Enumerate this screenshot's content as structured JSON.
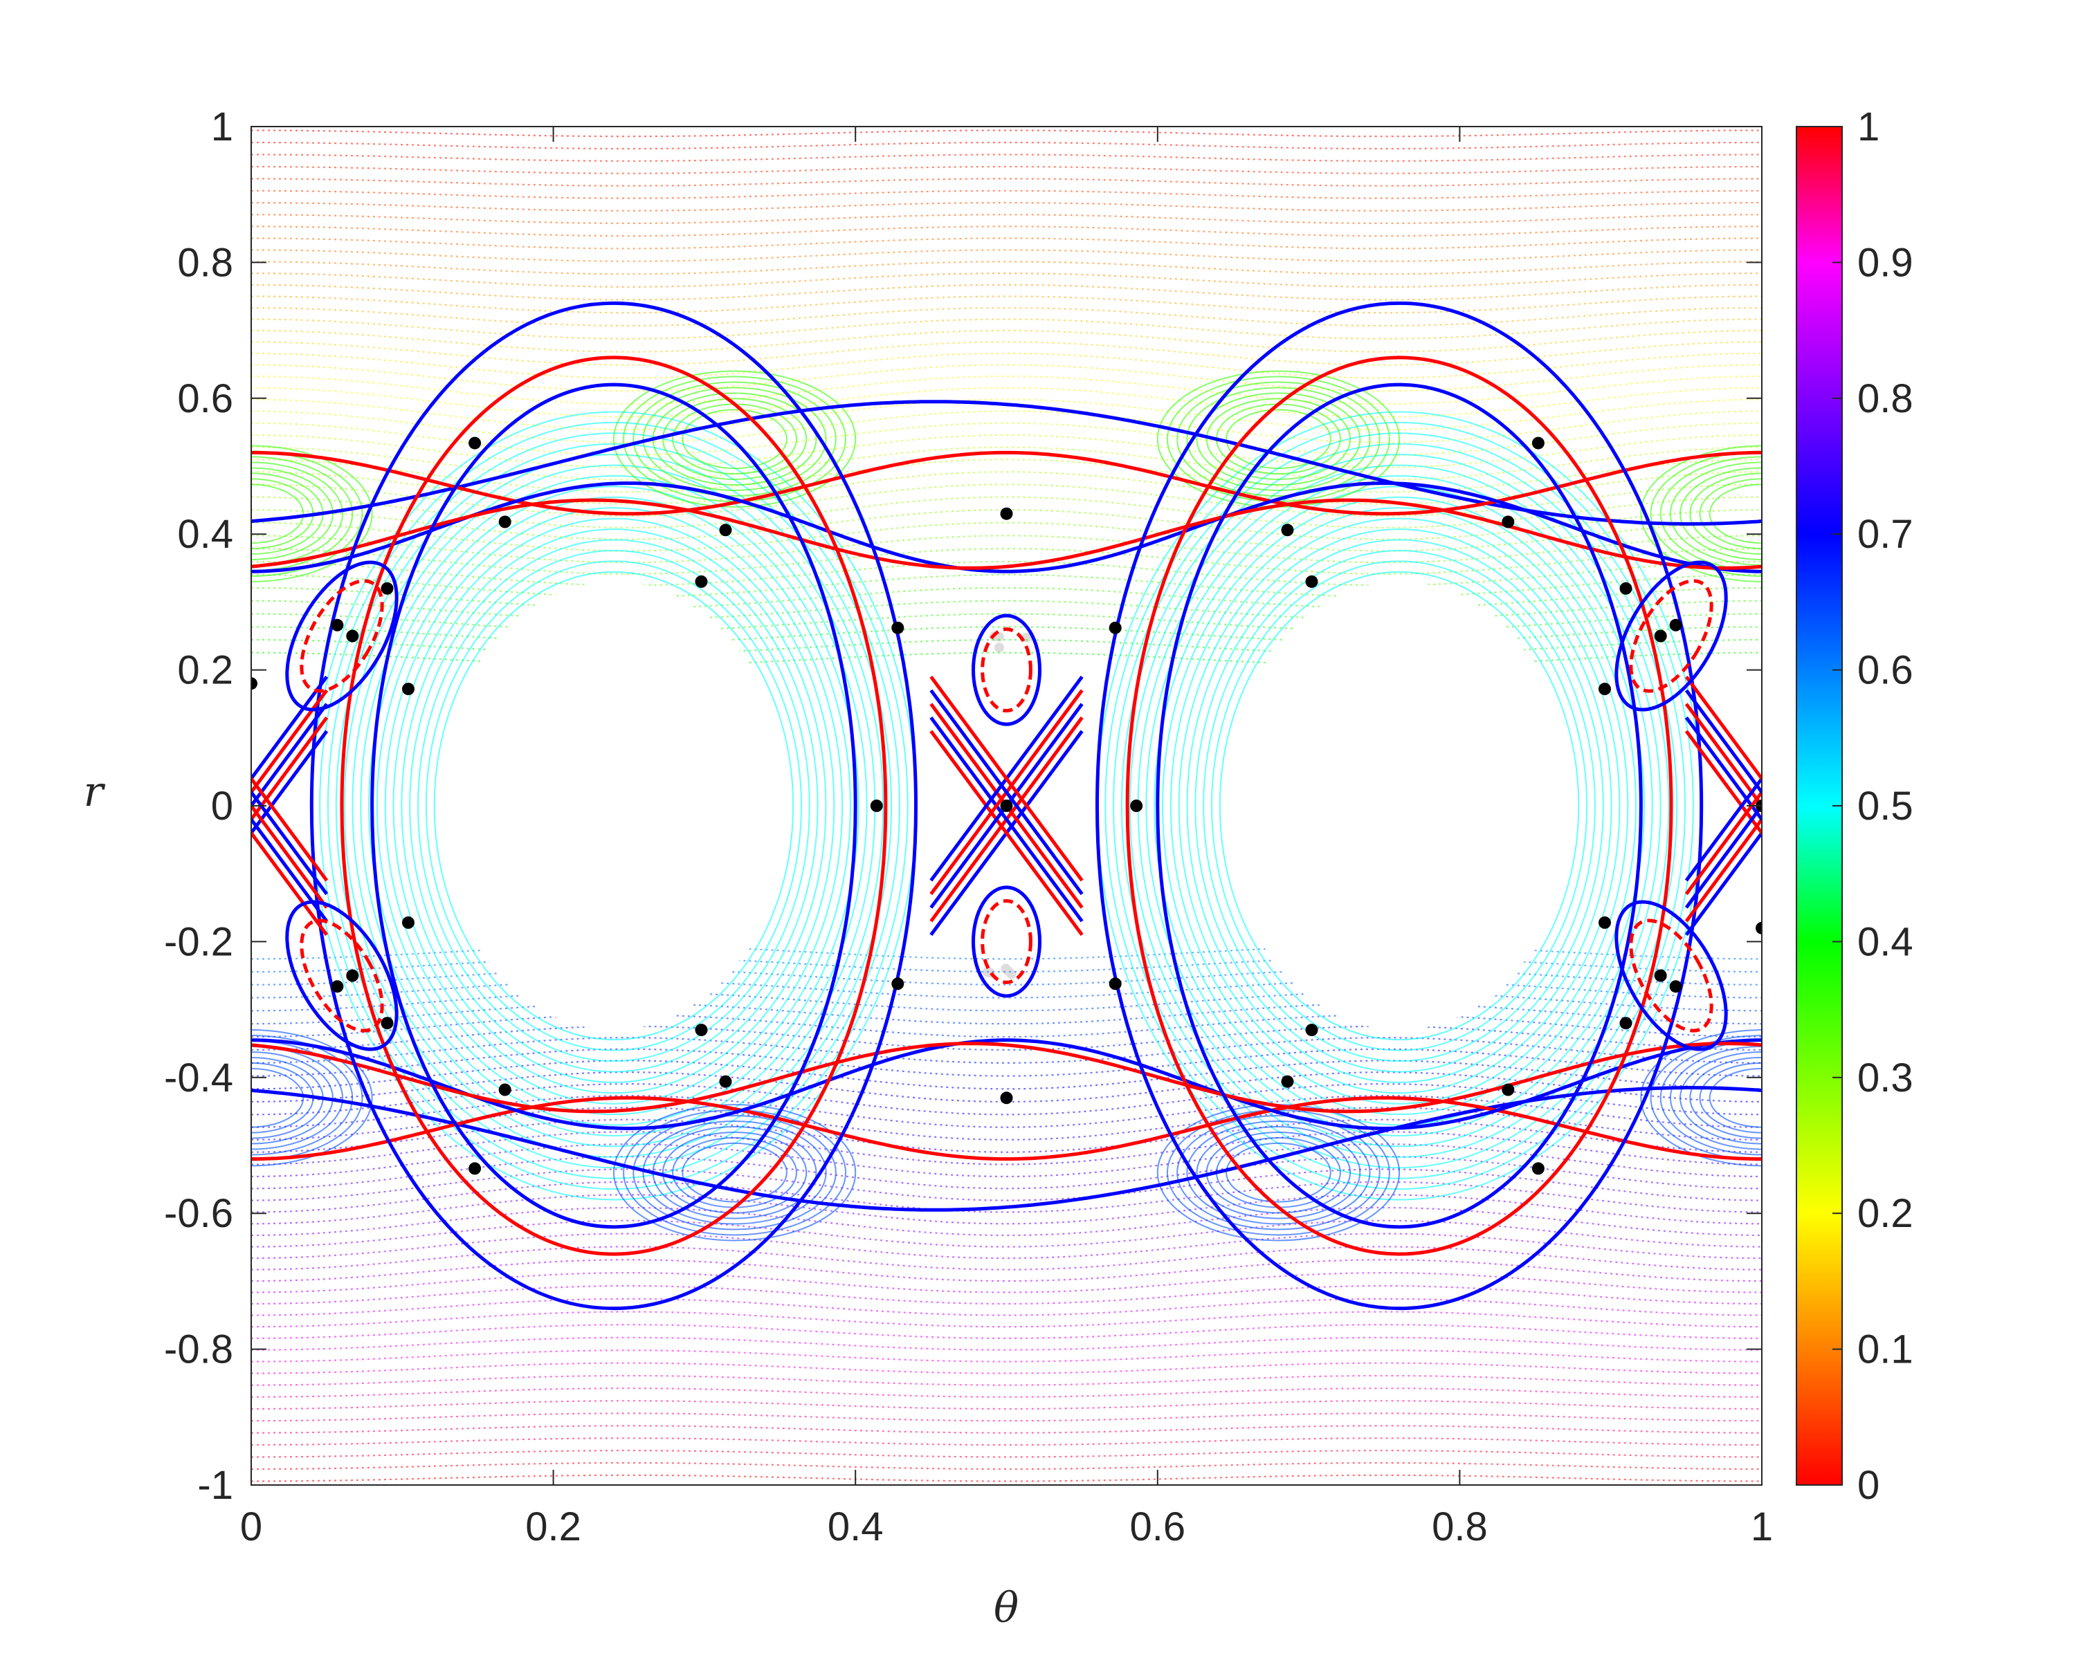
{
  "chart_data": {
    "type": "scatter",
    "xlabel": "θ",
    "ylabel": "r",
    "xlim": [
      0,
      1
    ],
    "ylim": [
      -1,
      1
    ],
    "grid": false,
    "xticks": [
      "0",
      "0.2",
      "0.4",
      "0.6",
      "0.8",
      "1"
    ],
    "yticks": [
      "-1",
      "-0.8",
      "-0.6",
      "-0.4",
      "-0.2",
      "0",
      "0.2",
      "0.4",
      "0.6",
      "0.8",
      "1"
    ],
    "colorbar": {
      "range": [
        0,
        1
      ],
      "ticks": [
        "0",
        "0.1",
        "0.2",
        "0.3",
        "0.4",
        "0.5",
        "0.6",
        "0.7",
        "0.8",
        "0.9",
        "1"
      ],
      "colormap": [
        "#ff0000",
        "#ff8000",
        "#ffff00",
        "#80ff00",
        "#00ff00",
        "#00ffff",
        "#0080ff",
        "#0000ff",
        "#8000ff",
        "#ff00ff",
        "#ff0000"
      ]
    },
    "colors": {
      "unstable_manifold": "#ff0000",
      "stable_manifold": "#0000ff",
      "points": "#000000",
      "chaotic_sea": "#d9d9d9"
    },
    "series": [
      {
        "marker": "dot",
        "points": [
          [
            0.0,
            0.18
          ],
          [
            0.148,
            0.534
          ],
          [
            0.168,
            0.418
          ],
          [
            0.314,
            0.406
          ],
          [
            0.298,
            0.33
          ],
          [
            0.104,
            0.172
          ],
          [
            0.428,
            0.262
          ],
          [
            0.414,
            0.0
          ],
          [
            0.5,
            0.43
          ],
          [
            0.5,
            0.0
          ],
          [
            0.5,
            -0.43
          ],
          [
            0.572,
            0.262
          ],
          [
            0.586,
            0.0
          ],
          [
            0.686,
            0.406
          ],
          [
            0.702,
            0.33
          ],
          [
            0.832,
            0.418
          ],
          [
            0.852,
            0.534
          ],
          [
            0.896,
            0.172
          ],
          [
            1.0,
            0.0
          ],
          [
            1.0,
            -0.18
          ],
          [
            0.104,
            -0.172
          ],
          [
            0.298,
            -0.33
          ],
          [
            0.314,
            -0.406
          ],
          [
            0.168,
            -0.418
          ],
          [
            0.148,
            -0.534
          ],
          [
            0.428,
            -0.262
          ],
          [
            0.572,
            -0.262
          ],
          [
            0.686,
            -0.406
          ],
          [
            0.702,
            -0.33
          ],
          [
            0.832,
            -0.418
          ],
          [
            0.852,
            -0.534
          ],
          [
            0.896,
            -0.172
          ],
          [
            0.057,
            0.266
          ],
          [
            0.067,
            0.25
          ],
          [
            0.09,
            0.32
          ],
          [
            0.943,
            0.266
          ],
          [
            0.933,
            0.25
          ],
          [
            0.91,
            0.32
          ],
          [
            0.057,
            -0.266
          ],
          [
            0.067,
            -0.25
          ],
          [
            0.09,
            -0.32
          ],
          [
            0.943,
            -0.266
          ],
          [
            0.933,
            -0.25
          ],
          [
            0.91,
            -0.32
          ]
        ]
      }
    ]
  }
}
